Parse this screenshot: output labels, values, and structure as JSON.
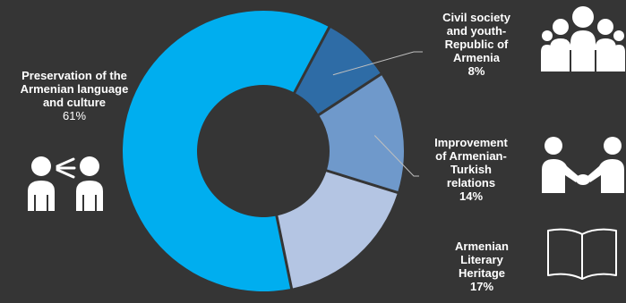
{
  "chart_data": {
    "type": "pie",
    "donut": true,
    "title": "",
    "slices": [
      {
        "label": "Preservation of the Armenian language and culture",
        "value": 61,
        "pct_text": "61%",
        "color": "#00aeef"
      },
      {
        "label": "Civil society and youth- Republic of Armenia",
        "value": 8,
        "pct_text": "8%",
        "color": "#2e6ca6"
      },
      {
        "label": "Improvement of Armenian-Turkish relations",
        "value": 14,
        "pct_text": "14%",
        "color": "#6f99cb"
      },
      {
        "label": "Armenian Literary Heritage",
        "value": 17,
        "pct_text": "17%",
        "color": "#b4c5e3"
      }
    ],
    "legend": "none",
    "label_lines": {
      "preservation": [
        "Preservation of the",
        "Armenian language",
        "and culture"
      ],
      "civil": [
        "Civil society",
        "and youth-",
        "Republic of",
        "Armenia"
      ],
      "turkish": [
        "Improvement",
        "of Armenian-",
        "Turkish",
        "relations"
      ],
      "literary": [
        "Armenian",
        "Literary",
        "Heritage"
      ]
    }
  },
  "icons": {
    "speaking": "people-talking-icon",
    "group": "group-of-people-icon",
    "handshake": "handshake-icon",
    "book": "open-book-icon"
  },
  "colors": {
    "background": "#353535",
    "leader_line": "#bfbfbf"
  }
}
